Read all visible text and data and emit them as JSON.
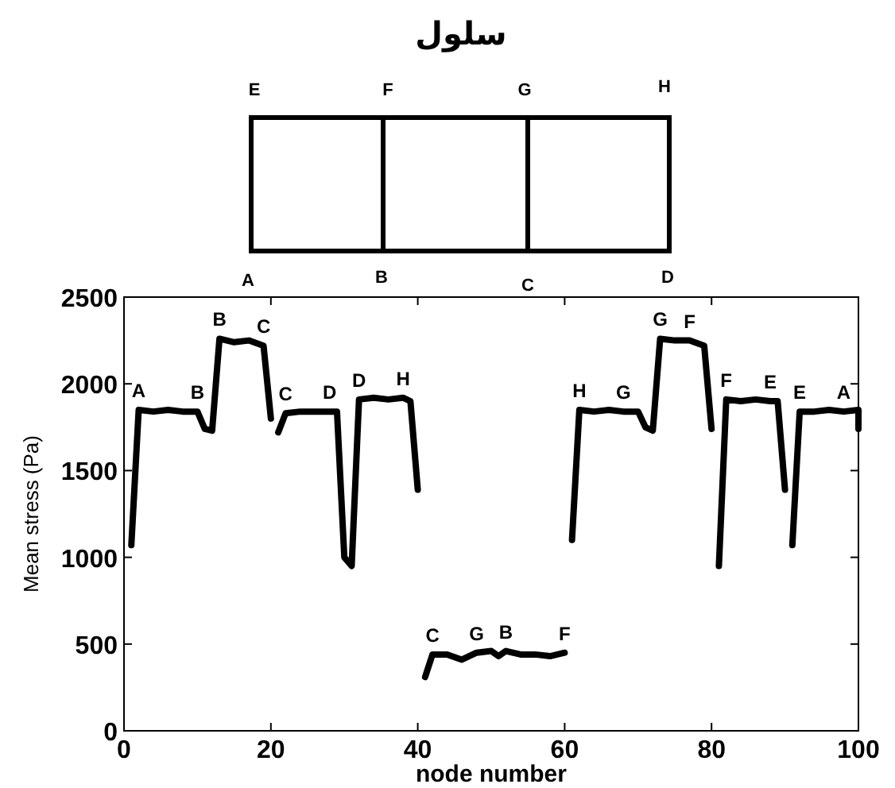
{
  "chart_data": {
    "type": "line",
    "title": "سلول",
    "xlabel": "node number",
    "ylabel": "Mean stress (Pa)",
    "xlim": [
      0,
      100
    ],
    "xticks": [
      0,
      20,
      40,
      60,
      80,
      100
    ],
    "ylim": [
      0,
      2500
    ],
    "yticks": [
      0,
      500,
      1000,
      1500,
      2000,
      2500
    ],
    "grid": false,
    "marker": "none",
    "line_style": "solid",
    "series": [
      {
        "color": "#000000",
        "x": [
          1,
          2,
          4,
          6,
          8,
          10,
          11,
          12,
          13,
          15,
          17,
          19,
          20
        ],
        "values": [
          1070,
          1850,
          1840,
          1850,
          1840,
          1840,
          1740,
          1730,
          2260,
          2240,
          2250,
          2220,
          1800
        ]
      },
      {
        "color": "#000000",
        "x": [
          21,
          22,
          24,
          26,
          28,
          29,
          30,
          31,
          32,
          34,
          36,
          38,
          39,
          40
        ],
        "values": [
          1720,
          1830,
          1840,
          1840,
          1840,
          1840,
          1000,
          950,
          1910,
          1920,
          1910,
          1920,
          1900,
          1390
        ]
      },
      {
        "color": "#000000",
        "x": [
          41,
          42,
          44,
          46,
          48,
          50,
          51,
          52,
          54,
          56,
          58,
          60
        ],
        "values": [
          310,
          440,
          440,
          410,
          450,
          460,
          430,
          460,
          440,
          440,
          430,
          450
        ]
      },
      {
        "color": "#000000",
        "x": [
          61,
          62,
          64,
          66,
          68,
          70,
          71,
          72,
          73,
          75,
          77,
          79,
          80
        ],
        "values": [
          1100,
          1850,
          1840,
          1850,
          1840,
          1840,
          1750,
          1730,
          2260,
          2250,
          2250,
          2220,
          1740
        ]
      },
      {
        "color": "#000000",
        "x": [
          81,
          82,
          84,
          86,
          88,
          89,
          90
        ],
        "values": [
          950,
          1910,
          1900,
          1910,
          1900,
          1900,
          1390
        ]
      },
      {
        "color": "#000000",
        "x": [
          91,
          92,
          94,
          96,
          98,
          100,
          100
        ],
        "values": [
          1070,
          1840,
          1840,
          1850,
          1840,
          1850,
          1740
        ]
      }
    ],
    "annotations": [
      "E",
      "F",
      "G",
      "H",
      "A",
      "B",
      "C",
      "D",
      {
        "text": "A",
        "x": 2,
        "y": 1850
      },
      {
        "text": "B",
        "x": 10,
        "y": 1840
      },
      {
        "text": "B",
        "x": 13,
        "y": 2260
      },
      {
        "text": "C",
        "x": 19,
        "y": 2220
      },
      {
        "text": "C",
        "x": 22,
        "y": 1830
      },
      {
        "text": "D",
        "x": 28,
        "y": 1840
      },
      {
        "text": "D",
        "x": 32,
        "y": 1910
      },
      {
        "text": "H",
        "x": 38,
        "y": 1920
      },
      {
        "text": "C",
        "x": 42,
        "y": 440
      },
      {
        "text": "G",
        "x": 48,
        "y": 450
      },
      {
        "text": "B",
        "x": 52,
        "y": 460
      },
      {
        "text": "F",
        "x": 60,
        "y": 450
      },
      {
        "text": "H",
        "x": 62,
        "y": 1850
      },
      {
        "text": "G",
        "x": 68,
        "y": 1840
      },
      {
        "text": "G",
        "x": 73,
        "y": 2260
      },
      {
        "text": "F",
        "x": 77,
        "y": 2250
      },
      {
        "text": "F",
        "x": 82,
        "y": 1910
      },
      {
        "text": "E",
        "x": 88,
        "y": 1900
      },
      {
        "text": "E",
        "x": 92,
        "y": 1840
      },
      {
        "text": "A",
        "x": 98,
        "y": 1840
      }
    ]
  }
}
